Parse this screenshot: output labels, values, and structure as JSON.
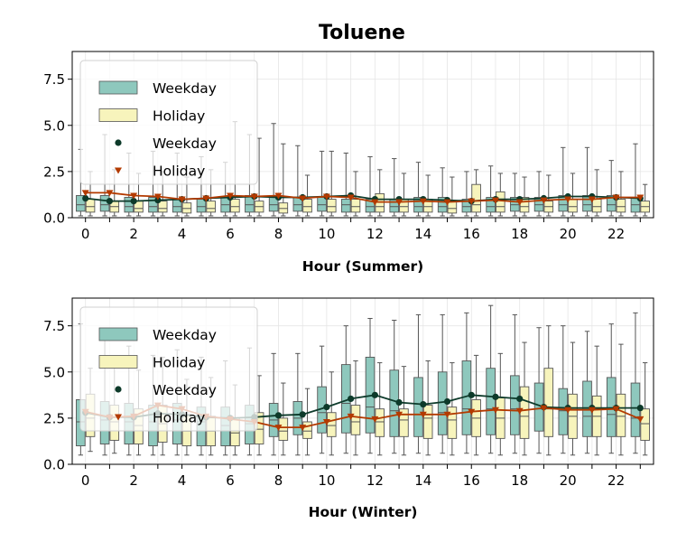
{
  "title": "Toluene",
  "colors": {
    "weekday_box": "#8ec8bd",
    "holiday_box": "#f7f4bc",
    "weekday_line": "#0d3a2a",
    "holiday_line": "#b33a00",
    "box_edge": "#555555",
    "grid": "#e6e6e6"
  },
  "chart_data": [
    {
      "type": "box",
      "xlabel": "Hour (Summer)",
      "ylim": [
        0,
        9
      ],
      "yticks": [
        "0.0",
        "2.5",
        "5.0",
        "7.5"
      ],
      "ytick_values": [
        0,
        2.5,
        5,
        7.5
      ],
      "xtick_labels": [
        "0",
        "2",
        "4",
        "6",
        "8",
        "10",
        "12",
        "14",
        "16",
        "18",
        "20",
        "22"
      ],
      "xtick_values": [
        0,
        2,
        4,
        6,
        8,
        10,
        12,
        14,
        16,
        18,
        20,
        22
      ],
      "legend": {
        "position": "upper-left",
        "entries": [
          {
            "label": "Weekday",
            "kind": "box-weekday"
          },
          {
            "label": "Holiday",
            "kind": "box-holiday"
          },
          {
            "label": "Weekday",
            "kind": "marker-weekday"
          },
          {
            "label": "Holiday",
            "kind": "marker-holiday"
          }
        ]
      },
      "series": [
        {
          "name": "Weekday",
          "boxes": [
            [
              0.1,
              0.35,
              0.7,
              1.2,
              3.7
            ],
            [
              0.1,
              0.35,
              0.7,
              1.2,
              4.5
            ],
            [
              0.1,
              0.3,
              0.6,
              1.1,
              3.5
            ],
            [
              0.1,
              0.3,
              0.6,
              1.1,
              3.6
            ],
            [
              0.1,
              0.3,
              0.6,
              1.0,
              3.5
            ],
            [
              0.1,
              0.3,
              0.6,
              1.0,
              3.3
            ],
            [
              0.1,
              0.3,
              0.7,
              1.1,
              3.0
            ],
            [
              0.1,
              0.3,
              0.7,
              1.2,
              4.5
            ],
            [
              0.1,
              0.35,
              0.7,
              1.2,
              5.1
            ],
            [
              0.1,
              0.35,
              0.7,
              1.1,
              3.9
            ],
            [
              0.1,
              0.35,
              0.7,
              1.1,
              3.6
            ],
            [
              0.1,
              0.3,
              0.7,
              1.0,
              3.5
            ],
            [
              0.1,
              0.3,
              0.6,
              1.0,
              3.3
            ],
            [
              0.1,
              0.3,
              0.6,
              1.0,
              3.2
            ],
            [
              0.1,
              0.3,
              0.6,
              1.1,
              3.0
            ],
            [
              0.1,
              0.3,
              0.6,
              1.1,
              2.7
            ],
            [
              0.1,
              0.3,
              0.6,
              1.0,
              2.5
            ],
            [
              0.1,
              0.3,
              0.6,
              1.1,
              2.8
            ],
            [
              0.1,
              0.35,
              0.7,
              1.1,
              2.4
            ],
            [
              0.1,
              0.35,
              0.7,
              1.1,
              2.5
            ],
            [
              0.1,
              0.35,
              0.7,
              1.2,
              3.8
            ],
            [
              0.1,
              0.35,
              0.7,
              1.2,
              3.8
            ],
            [
              0.1,
              0.35,
              0.7,
              1.2,
              3.1
            ],
            [
              0.1,
              0.3,
              0.7,
              1.1,
              4.0
            ]
          ],
          "means": [
            1.05,
            0.9,
            0.9,
            0.95,
            1.0,
            1.05,
            1.1,
            1.15,
            1.1,
            1.1,
            1.15,
            1.2,
            1.0,
            1.0,
            1.0,
            0.95,
            0.9,
            1.0,
            1.0,
            1.05,
            1.15,
            1.15,
            1.1,
            1.05
          ]
        },
        {
          "name": "Holiday",
          "boxes": [
            [
              0.1,
              0.3,
              0.6,
              1.0,
              2.5
            ],
            [
              0.1,
              0.3,
              0.6,
              0.9,
              2.6
            ],
            [
              0.1,
              0.3,
              0.5,
              0.9,
              2.4
            ],
            [
              0.1,
              0.3,
              0.5,
              0.9,
              2.5
            ],
            [
              0.1,
              0.25,
              0.5,
              0.8,
              2.2
            ],
            [
              0.1,
              0.3,
              0.5,
              0.9,
              2.6
            ],
            [
              0.1,
              0.3,
              0.6,
              1.0,
              5.2
            ],
            [
              0.1,
              0.3,
              0.6,
              0.9,
              4.3
            ],
            [
              0.1,
              0.25,
              0.5,
              0.8,
              4.0
            ],
            [
              0.1,
              0.3,
              0.6,
              1.0,
              2.3
            ],
            [
              0.1,
              0.3,
              0.6,
              1.0,
              3.6
            ],
            [
              0.1,
              0.3,
              0.6,
              1.0,
              2.5
            ],
            [
              0.1,
              0.3,
              0.6,
              1.3,
              2.6
            ],
            [
              0.1,
              0.3,
              0.6,
              1.0,
              2.4
            ],
            [
              0.1,
              0.3,
              0.6,
              1.0,
              2.3
            ],
            [
              0.1,
              0.25,
              0.5,
              0.9,
              2.2
            ],
            [
              0.1,
              0.3,
              0.7,
              1.8,
              2.6
            ],
            [
              0.1,
              0.3,
              0.6,
              1.4,
              2.4
            ],
            [
              0.1,
              0.3,
              0.6,
              1.1,
              2.2
            ],
            [
              0.1,
              0.3,
              0.6,
              0.9,
              2.3
            ],
            [
              0.1,
              0.3,
              0.6,
              1.0,
              2.4
            ],
            [
              0.1,
              0.3,
              0.6,
              1.0,
              2.6
            ],
            [
              0.1,
              0.3,
              0.6,
              1.0,
              2.5
            ],
            [
              0.1,
              0.3,
              0.6,
              0.9,
              1.8
            ]
          ],
          "means": [
            1.35,
            1.35,
            1.2,
            1.15,
            1.0,
            1.05,
            1.2,
            1.15,
            1.2,
            1.05,
            1.15,
            1.1,
            0.85,
            0.85,
            0.9,
            0.85,
            0.9,
            0.95,
            0.85,
            0.95,
            1.0,
            1.0,
            1.1,
            1.1
          ]
        }
      ]
    },
    {
      "type": "box",
      "xlabel": "Hour (Winter)",
      "ylim": [
        0,
        9
      ],
      "yticks": [
        "0.0",
        "2.5",
        "5.0",
        "7.5"
      ],
      "ytick_values": [
        0,
        2.5,
        5,
        7.5
      ],
      "xtick_labels": [
        "0",
        "2",
        "4",
        "6",
        "8",
        "10",
        "12",
        "14",
        "16",
        "18",
        "20",
        "22"
      ],
      "xtick_values": [
        0,
        2,
        4,
        6,
        8,
        10,
        12,
        14,
        16,
        18,
        20,
        22
      ],
      "legend": {
        "position": "upper-left",
        "entries": [
          {
            "label": "Weekday",
            "kind": "box-weekday"
          },
          {
            "label": "Holiday",
            "kind": "box-holiday"
          },
          {
            "label": "Weekday",
            "kind": "marker-weekday"
          },
          {
            "label": "Holiday",
            "kind": "marker-holiday"
          }
        ]
      },
      "series": [
        {
          "name": "Weekday",
          "boxes": [
            [
              0.5,
              1.0,
              2.3,
              3.5,
              7.6
            ],
            [
              0.5,
              1.1,
              2.4,
              3.4,
              6.8
            ],
            [
              0.5,
              1.1,
              2.3,
              3.3,
              6.4
            ],
            [
              0.5,
              1.0,
              2.3,
              3.2,
              5.9
            ],
            [
              0.5,
              1.1,
              2.4,
              3.3,
              6.2
            ],
            [
              0.5,
              1.0,
              2.3,
              3.1,
              5.8
            ],
            [
              0.5,
              1.0,
              2.1,
              3.1,
              5.6
            ],
            [
              0.5,
              1.1,
              2.2,
              3.2,
              6.3
            ],
            [
              0.5,
              1.5,
              2.4,
              3.3,
              6.0
            ],
            [
              0.5,
              1.6,
              2.5,
              3.4,
              6.0
            ],
            [
              0.6,
              1.7,
              2.8,
              4.2,
              6.4
            ],
            [
              0.6,
              1.7,
              3.3,
              5.4,
              7.5
            ],
            [
              0.6,
              1.7,
              3.1,
              5.8,
              7.9
            ],
            [
              0.6,
              1.5,
              2.9,
              5.1,
              7.8
            ],
            [
              0.6,
              1.5,
              2.7,
              4.7,
              8.1
            ],
            [
              0.6,
              1.6,
              2.8,
              5.0,
              8.1
            ],
            [
              0.6,
              1.6,
              3.0,
              5.6,
              8.2
            ],
            [
              0.6,
              1.6,
              3.0,
              5.2,
              8.6
            ],
            [
              0.6,
              1.6,
              3.0,
              4.8,
              8.1
            ],
            [
              0.6,
              1.8,
              3.0,
              4.4,
              7.4
            ],
            [
              0.6,
              1.6,
              2.9,
              4.1,
              7.5
            ],
            [
              0.6,
              1.5,
              2.6,
              4.5,
              7.2
            ],
            [
              0.6,
              1.5,
              2.7,
              4.7,
              7.6
            ],
            [
              0.6,
              1.5,
              2.5,
              4.4,
              8.2
            ]
          ],
          "means": [
            2.8,
            2.55,
            2.55,
            2.75,
            2.7,
            2.55,
            2.5,
            2.55,
            2.65,
            2.7,
            3.1,
            3.55,
            3.75,
            3.35,
            3.25,
            3.4,
            3.75,
            3.65,
            3.55,
            3.1,
            3.05,
            3.05,
            3.05,
            3.05
          ]
        },
        {
          "name": "Holiday",
          "boxes": [
            [
              0.7,
              1.5,
              2.5,
              3.8,
              5.2
            ],
            [
              0.6,
              1.3,
              2.3,
              3.2,
              5.5
            ],
            [
              0.5,
              1.1,
              2.1,
              3.0,
              5.1
            ],
            [
              0.5,
              1.2,
              2.2,
              3.2,
              5.8
            ],
            [
              0.5,
              1.0,
              1.8,
              2.7,
              4.6
            ],
            [
              0.5,
              1.0,
              1.8,
              2.6,
              4.7
            ],
            [
              0.5,
              1.0,
              1.7,
              2.5,
              4.3
            ],
            [
              0.5,
              1.1,
              1.9,
              2.8,
              4.8
            ],
            [
              0.5,
              1.3,
              1.8,
              2.5,
              4.4
            ],
            [
              0.5,
              1.4,
              1.8,
              2.3,
              4.1
            ],
            [
              0.5,
              1.5,
              2.1,
              2.8,
              5.0
            ],
            [
              0.5,
              1.6,
              2.3,
              3.2,
              5.6
            ],
            [
              0.5,
              1.5,
              2.3,
              3.0,
              5.5
            ],
            [
              0.5,
              1.5,
              2.4,
              3.0,
              5.3
            ],
            [
              0.5,
              1.4,
              2.5,
              3.2,
              5.6
            ],
            [
              0.5,
              1.4,
              2.4,
              3.1,
              5.5
            ],
            [
              0.5,
              1.5,
              2.5,
              3.5,
              5.9
            ],
            [
              0.5,
              1.4,
              2.5,
              3.6,
              6.0
            ],
            [
              0.5,
              1.4,
              2.6,
              4.2,
              6.6
            ],
            [
              0.5,
              1.5,
              3.0,
              5.2,
              7.5
            ],
            [
              0.5,
              1.4,
              2.6,
              3.8,
              6.6
            ],
            [
              0.5,
              1.5,
              2.6,
              3.7,
              6.4
            ],
            [
              0.5,
              1.5,
              2.6,
              3.8,
              6.5
            ],
            [
              0.5,
              1.3,
              2.2,
              3.0,
              5.5
            ]
          ],
          "means": [
            2.85,
            2.55,
            2.6,
            3.2,
            3.0,
            2.6,
            2.45,
            2.3,
            2.0,
            2.0,
            2.3,
            2.6,
            2.45,
            2.7,
            2.7,
            2.7,
            2.85,
            2.95,
            2.9,
            3.05,
            2.95,
            2.95,
            3.0,
            2.45
          ]
        }
      ]
    }
  ]
}
